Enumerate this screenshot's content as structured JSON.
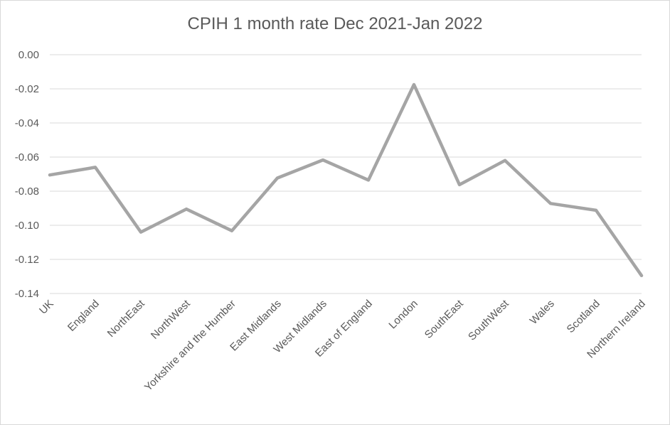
{
  "chart_data": {
    "type": "line",
    "title": "CPIH 1 month rate Dec 2021-Jan 2022",
    "categories": [
      "UK",
      "England",
      "NorthEast",
      "NorthWest",
      "Yorkshire and the Humber",
      "East Midlands",
      "West Midlands",
      "East of England",
      "London",
      "SouthEast",
      "SouthWest",
      "Wales",
      "Scotland",
      "Northern Ireland"
    ],
    "values": [
      -0.0705,
      -0.066,
      -0.104,
      -0.0905,
      -0.1032,
      -0.0723,
      -0.0617,
      -0.0735,
      -0.0175,
      -0.0762,
      -0.062,
      -0.0872,
      -0.0912,
      -0.1295
    ],
    "yticks": [
      "0.00",
      "-0.02",
      "-0.04",
      "-0.06",
      "-0.08",
      "-0.10",
      "-0.12",
      "-0.14"
    ],
    "ylim": [
      -0.14,
      0.0
    ],
    "grid": true,
    "legend": "none",
    "line_color": "#a5a5a5",
    "grid_color": "#d9d9d9",
    "text_color": "#595959"
  }
}
